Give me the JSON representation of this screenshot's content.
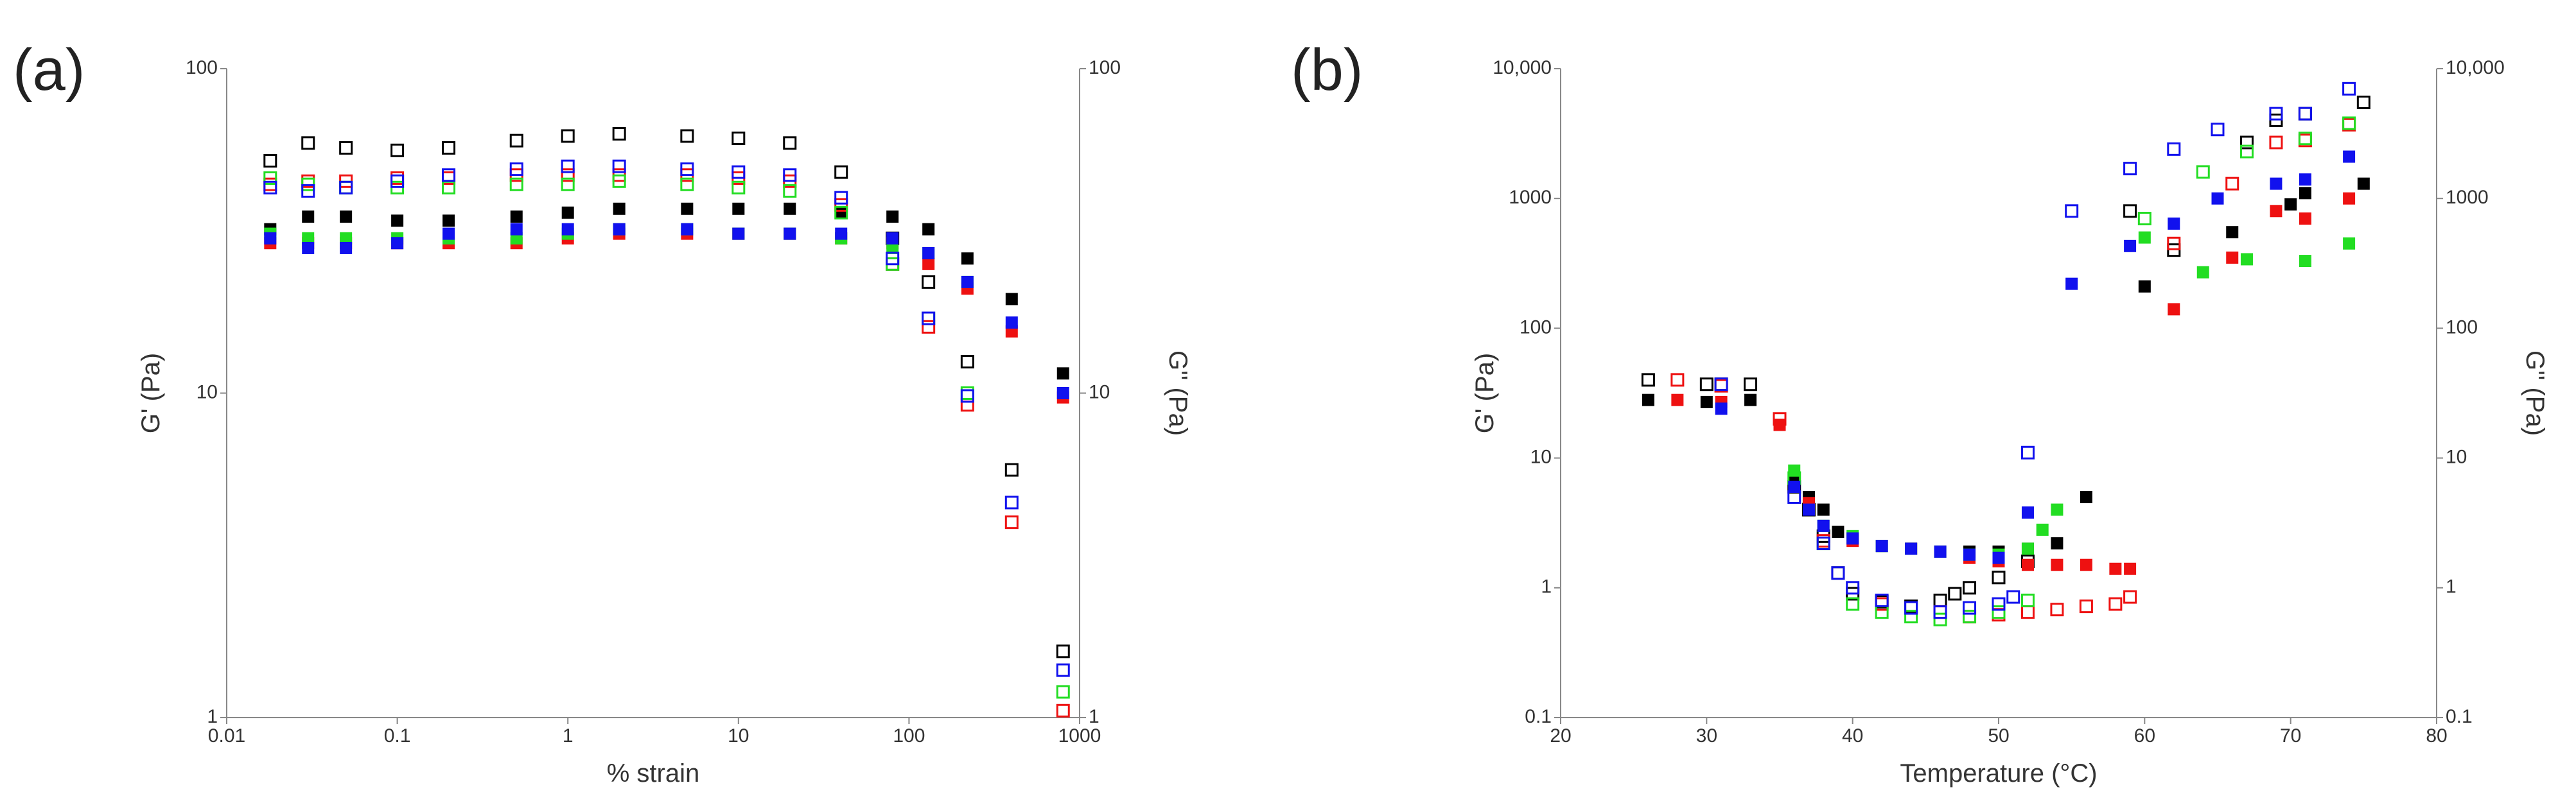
{
  "chart_data": [
    {
      "type": "scatter",
      "label": "(a)",
      "xlabel": "% strain",
      "ylabel": "G' (Pa)",
      "y2label": "G'' (Pa)",
      "xscale": "log",
      "yscale": "log",
      "y2scale": "log",
      "xlim": [
        0.01,
        1000
      ],
      "xticks": [
        0.01,
        0.1,
        1,
        10,
        100,
        1000
      ],
      "ylim": [
        1,
        100
      ],
      "yticks": [
        1,
        10,
        100
      ],
      "y2lim": [
        1,
        100
      ],
      "y2ticks": [
        1,
        10,
        100
      ],
      "x": [
        0.018,
        0.03,
        0.05,
        0.1,
        0.2,
        0.5,
        1,
        2,
        5,
        10,
        20,
        40,
        80,
        130,
        220,
        400,
        800
      ],
      "series": [
        {
          "color": "#000000",
          "marker": "open",
          "values": [
            52,
            59,
            57,
            56,
            57,
            60,
            62,
            63,
            62,
            61,
            59,
            48,
            30,
            22,
            12.5,
            5.8,
            1.6
          ]
        },
        {
          "color": "#000000",
          "marker": "filled",
          "values": [
            32,
            35,
            35,
            34,
            34,
            35,
            36,
            37,
            37,
            37,
            37,
            36,
            35,
            32,
            26,
            19.5,
            11.5
          ]
        },
        {
          "color": "#ee1111",
          "marker": "open",
          "values": [
            44,
            45,
            45,
            46,
            46,
            47,
            47,
            47,
            47,
            46,
            45,
            38,
            25,
            16,
            9.2,
            4,
            1.05
          ]
        },
        {
          "color": "#ee1111",
          "marker": "filled",
          "values": [
            29,
            29,
            29,
            29,
            29,
            29,
            30,
            31,
            31,
            31,
            31,
            30,
            29,
            25,
            21,
            15.5,
            9.7
          ]
        },
        {
          "color": "#22dd22",
          "marker": "open",
          "values": [
            46,
            44,
            43,
            43,
            43,
            44,
            44,
            45,
            44,
            43,
            42,
            36,
            25,
            17,
            10,
            null,
            1.2
          ]
        },
        {
          "color": "#22dd22",
          "marker": "filled",
          "values": [
            31,
            30,
            30,
            30,
            30,
            30,
            31,
            32,
            32,
            31,
            31,
            30,
            28,
            27,
            22,
            null,
            null
          ]
        },
        {
          "color": "#1111ee",
          "marker": "open",
          "values": [
            43,
            42,
            43,
            45,
            47,
            49,
            50,
            50,
            49,
            48,
            47,
            40,
            26,
            17,
            9.8,
            4.6,
            1.4
          ]
        },
        {
          "color": "#1111ee",
          "marker": "filled",
          "values": [
            30,
            28,
            28,
            29,
            31,
            32,
            32,
            32,
            32,
            31,
            31,
            31,
            30,
            27,
            22,
            16.5,
            10
          ]
        }
      ]
    },
    {
      "type": "scatter",
      "label": "(b)",
      "xlabel": "Temperature (°C)",
      "ylabel": "G' (Pa)",
      "y2label": "G'' (Pa)",
      "xscale": "linear",
      "yscale": "log",
      "y2scale": "log",
      "xlim": [
        20,
        80
      ],
      "xticks": [
        20,
        30,
        40,
        50,
        60,
        70,
        80
      ],
      "ylim": [
        0.1,
        10000
      ],
      "yticks": [
        0.1,
        1,
        10,
        100,
        1000,
        {
          "value": 10000,
          "label": "10,000"
        }
      ],
      "y2lim": [
        0.1,
        10000
      ],
      "y2ticks": [
        0.1,
        1,
        10,
        100,
        1000,
        {
          "value": 10000,
          "label": "10,000"
        }
      ],
      "series": [
        {
          "color": "#000000",
          "marker": "filled",
          "x": [
            26,
            30,
            33,
            36,
            37,
            38,
            39,
            40,
            42,
            44,
            46,
            48,
            50,
            52,
            54,
            56,
            60,
            66,
            70,
            71,
            75
          ],
          "values": [
            28,
            27,
            28,
            7,
            5,
            4,
            2.7,
            2.4,
            2.1,
            2,
            1.9,
            1.9,
            1.9,
            2,
            2.2,
            5,
            210,
            550,
            900,
            1100,
            1300
          ]
        },
        {
          "color": "#000000",
          "marker": "open",
          "x": [
            26,
            30,
            31,
            33,
            36,
            37,
            38,
            39,
            40,
            42,
            44,
            46,
            47,
            48,
            50,
            52,
            59,
            62,
            67,
            69,
            71,
            75
          ],
          "values": [
            40,
            37,
            37,
            37,
            6,
            4,
            2.5,
            1.3,
            0.9,
            0.78,
            0.72,
            0.8,
            0.9,
            1,
            1.2,
            1.6,
            800,
            400,
            2700,
            4000,
            4500,
            5500
          ]
        },
        {
          "color": "#ee1111",
          "marker": "filled",
          "x": [
            28,
            31,
            35,
            37,
            40,
            44,
            48,
            50,
            52,
            54,
            56,
            58,
            59,
            62,
            66,
            69,
            71,
            74
          ],
          "values": [
            28,
            27,
            18,
            4.5,
            2.3,
            2,
            1.7,
            1.6,
            1.5,
            1.5,
            1.5,
            1.4,
            1.4,
            140,
            350,
            800,
            700,
            1000
          ]
        },
        {
          "color": "#ee1111",
          "marker": "open",
          "x": [
            28,
            31,
            35,
            38,
            42,
            46,
            48,
            50,
            52,
            54,
            56,
            58,
            59,
            62,
            66,
            69,
            71,
            74
          ],
          "values": [
            40,
            36,
            20,
            2.3,
            0.75,
            0.65,
            0.6,
            0.62,
            0.65,
            0.68,
            0.72,
            0.75,
            0.85,
            450,
            1300,
            2700,
            2800,
            3700
          ]
        },
        {
          "color": "#22dd22",
          "marker": "filled",
          "x": [
            36,
            38,
            40,
            42,
            44,
            46,
            48,
            50,
            52,
            53,
            54,
            60,
            64,
            67,
            71,
            74
          ],
          "values": [
            8,
            3,
            2.5,
            2.1,
            2,
            1.9,
            1.8,
            1.8,
            2,
            2.8,
            4,
            500,
            270,
            340,
            330,
            450
          ]
        },
        {
          "color": "#22dd22",
          "marker": "open",
          "x": [
            36,
            38,
            40,
            42,
            44,
            46,
            48,
            50,
            52,
            60,
            64,
            67,
            71,
            74
          ],
          "values": [
            7,
            2.2,
            0.75,
            0.65,
            0.6,
            0.57,
            0.6,
            0.65,
            0.8,
            700,
            1600,
            2300,
            2900,
            3800
          ]
        },
        {
          "color": "#1111ee",
          "marker": "filled",
          "x": [
            31,
            36,
            37,
            38,
            40,
            42,
            44,
            46,
            48,
            50,
            52,
            55,
            59,
            62,
            65,
            69,
            71,
            74
          ],
          "values": [
            24,
            6,
            4,
            3,
            2.4,
            2.1,
            2,
            1.9,
            1.8,
            1.7,
            3.8,
            220,
            430,
            640,
            1000,
            1300,
            1400,
            2100
          ]
        },
        {
          "color": "#1111ee",
          "marker": "open",
          "x": [
            31,
            36,
            38,
            39,
            40,
            42,
            44,
            46,
            48,
            50,
            51,
            52,
            55,
            59,
            62,
            65,
            69,
            71,
            74
          ],
          "values": [
            37,
            5,
            2.2,
            1.3,
            1,
            0.8,
            0.7,
            0.65,
            0.7,
            0.75,
            0.85,
            11,
            800,
            1700,
            2400,
            3400,
            4500,
            4500,
            7000
          ]
        }
      ]
    }
  ]
}
